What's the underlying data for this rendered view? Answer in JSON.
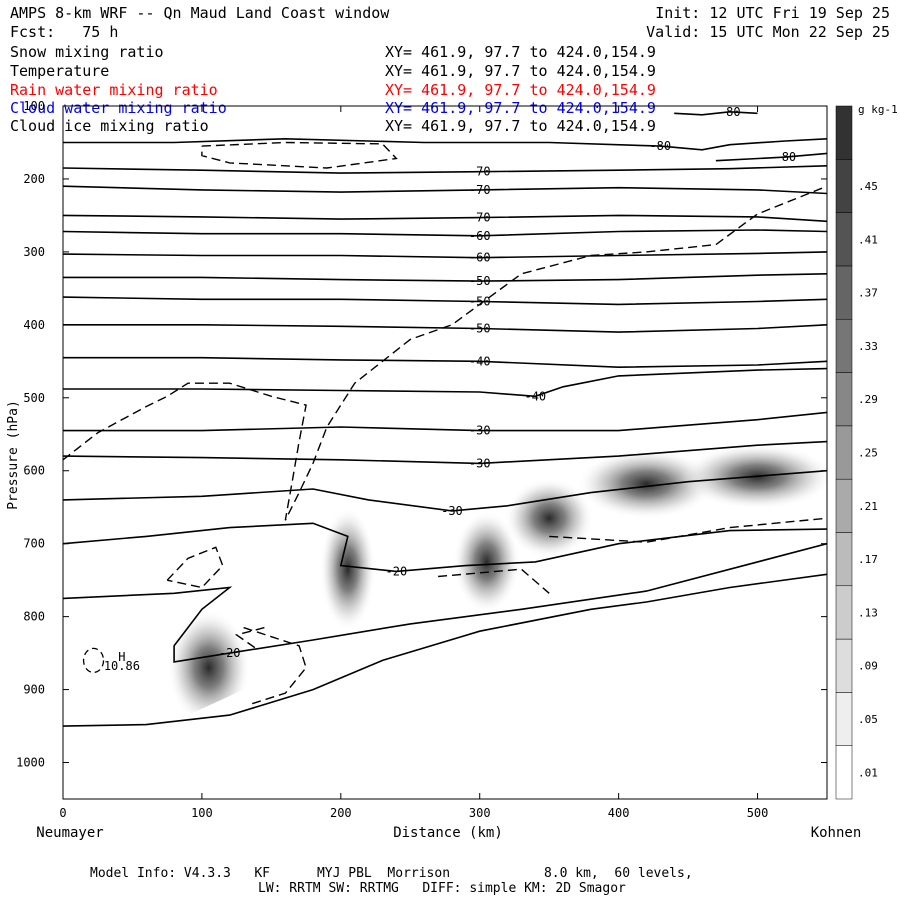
{
  "header": {
    "title": "AMPS 8-km WRF -- Qn Maud Land Coast window",
    "forecast": "Fcst:   75 h",
    "init": "Init: 12 UTC Fri 19 Sep 25",
    "valid": "Valid: 15 UTC Mon 22 Sep 25"
  },
  "legend": [
    {
      "name": "Snow mixing ratio",
      "xy": "XY= 461.9, 97.7 to 424.0,154.9",
      "color": "#000000"
    },
    {
      "name": "Temperature",
      "xy": "XY= 461.9, 97.7 to 424.0,154.9",
      "color": "#000000"
    },
    {
      "name": "Rain water mixing ratio",
      "xy": "XY= 461.9, 97.7 to 424.0,154.9",
      "color": "#ff0000"
    },
    {
      "name": "Cloud water mixing ratio",
      "xy": "XY= 461.9, 97.7 to 424.0,154.9",
      "color": "#0000ff"
    },
    {
      "name": "Cloud ice mixing ratio",
      "xy": "XY= 461.9, 97.7 to 424.0,154.9",
      "color": "#000000"
    }
  ],
  "endpoints": {
    "left": "Neumayer",
    "right": "Kohnen"
  },
  "footer": {
    "line1": "Model Info: V4.3.3   KF      MYJ PBL  Morrison            8.0 km,  60 levels,",
    "line2": "LW: RRTM SW: RRTMG   DIFF: simple KM: 2D Smagor"
  },
  "chart_data": {
    "type": "cross-section",
    "xlabel": "Distance (km)",
    "ylabel": "Pressure (hPa)",
    "xlim": [
      0,
      550
    ],
    "ylim": [
      1050,
      100
    ],
    "xticks": [
      0,
      100,
      200,
      300,
      400,
      500
    ],
    "yticks": [
      100,
      200,
      300,
      400,
      500,
      600,
      700,
      800,
      900,
      1000
    ],
    "colorbar": {
      "unit": "g kg-1",
      "labels": [
        ".01",
        ".05",
        ".09",
        ".13",
        ".17",
        ".21",
        ".25",
        ".29",
        ".33",
        ".37",
        ".41",
        ".45"
      ]
    },
    "temperature_contours": [
      {
        "label": "-80",
        "pts": [
          [
            440,
            110
          ],
          [
            460,
            112
          ],
          [
            480,
            108
          ],
          [
            500,
            110
          ]
        ]
      },
      {
        "label": "-80",
        "pts": [
          [
            0,
            150
          ],
          [
            80,
            150
          ],
          [
            160,
            145
          ],
          [
            260,
            150
          ],
          [
            350,
            150
          ],
          [
            430,
            155
          ],
          [
            460,
            160
          ],
          [
            480,
            153
          ],
          [
            520,
            148
          ],
          [
            550,
            145
          ]
        ]
      },
      {
        "label": "-80",
        "pts": [
          [
            470,
            175
          ],
          [
            520,
            170
          ],
          [
            550,
            165
          ]
        ]
      },
      {
        "label": "-70",
        "pts": [
          [
            0,
            185
          ],
          [
            100,
            188
          ],
          [
            200,
            192
          ],
          [
            300,
            190
          ],
          [
            400,
            188
          ],
          [
            480,
            186
          ],
          [
            550,
            182
          ]
        ]
      },
      {
        "label": "-70",
        "pts": [
          [
            0,
            210
          ],
          [
            100,
            215
          ],
          [
            200,
            218
          ],
          [
            300,
            215
          ],
          [
            400,
            212
          ],
          [
            500,
            215
          ],
          [
            550,
            220
          ]
        ]
      },
      {
        "label": "-70",
        "pts": [
          [
            0,
            250
          ],
          [
            100,
            252
          ],
          [
            200,
            255
          ],
          [
            300,
            253
          ],
          [
            400,
            250
          ],
          [
            500,
            252
          ],
          [
            550,
            258
          ]
        ]
      },
      {
        "label": "-60",
        "pts": [
          [
            0,
            272
          ],
          [
            100,
            275
          ],
          [
            200,
            275
          ],
          [
            300,
            278
          ],
          [
            400,
            272
          ],
          [
            500,
            270
          ],
          [
            550,
            272
          ]
        ]
      },
      {
        "label": "-60",
        "pts": [
          [
            0,
            303
          ],
          [
            100,
            305
          ],
          [
            200,
            305
          ],
          [
            300,
            308
          ],
          [
            400,
            305
          ],
          [
            500,
            302
          ],
          [
            550,
            300
          ]
        ]
      },
      {
        "label": "-50",
        "pts": [
          [
            0,
            335
          ],
          [
            100,
            335
          ],
          [
            200,
            338
          ],
          [
            300,
            340
          ],
          [
            400,
            338
          ],
          [
            500,
            332
          ],
          [
            550,
            330
          ]
        ]
      },
      {
        "label": "-50",
        "pts": [
          [
            0,
            362
          ],
          [
            100,
            365
          ],
          [
            200,
            365
          ],
          [
            300,
            368
          ],
          [
            400,
            372
          ],
          [
            500,
            368
          ],
          [
            550,
            365
          ]
        ]
      },
      {
        "label": "-50",
        "pts": [
          [
            0,
            400
          ],
          [
            100,
            400
          ],
          [
            200,
            402
          ],
          [
            300,
            405
          ],
          [
            400,
            410
          ],
          [
            500,
            405
          ],
          [
            550,
            400
          ]
        ]
      },
      {
        "label": "-40",
        "pts": [
          [
            0,
            445
          ],
          [
            100,
            445
          ],
          [
            200,
            448
          ],
          [
            300,
            450
          ],
          [
            400,
            458
          ],
          [
            500,
            455
          ],
          [
            550,
            450
          ]
        ]
      },
      {
        "label": "-40",
        "pts": [
          [
            0,
            488
          ],
          [
            100,
            488
          ],
          [
            200,
            490
          ],
          [
            300,
            492
          ],
          [
            340,
            498
          ],
          [
            360,
            485
          ],
          [
            400,
            470
          ],
          [
            500,
            462
          ],
          [
            550,
            460
          ]
        ]
      },
      {
        "label": "-30",
        "pts": [
          [
            0,
            545
          ],
          [
            100,
            545
          ],
          [
            200,
            540
          ],
          [
            300,
            545
          ],
          [
            400,
            545
          ],
          [
            500,
            530
          ],
          [
            550,
            520
          ]
        ]
      },
      {
        "label": "-30",
        "pts": [
          [
            0,
            580
          ],
          [
            100,
            582
          ],
          [
            200,
            585
          ],
          [
            300,
            590
          ],
          [
            400,
            580
          ],
          [
            500,
            565
          ],
          [
            550,
            560
          ]
        ]
      },
      {
        "label": "-30",
        "pts": [
          [
            0,
            640
          ],
          [
            100,
            635
          ],
          [
            180,
            625
          ],
          [
            220,
            640
          ],
          [
            280,
            655
          ],
          [
            320,
            648
          ],
          [
            380,
            630
          ],
          [
            450,
            615
          ],
          [
            550,
            600
          ]
        ]
      },
      {
        "label": "-20",
        "pts": [
          [
            0,
            700
          ],
          [
            60,
            690
          ],
          [
            120,
            678
          ],
          [
            180,
            672
          ],
          [
            205,
            690
          ],
          [
            200,
            730
          ],
          [
            240,
            738
          ],
          [
            290,
            730
          ],
          [
            340,
            725
          ],
          [
            400,
            700
          ],
          [
            480,
            682
          ],
          [
            550,
            680
          ]
        ]
      },
      {
        "label": "-20",
        "pts": [
          [
            0,
            775
          ],
          [
            80,
            768
          ],
          [
            120,
            760
          ],
          [
            100,
            790
          ],
          [
            80,
            840
          ],
          [
            80,
            862
          ],
          [
            120,
            850
          ],
          [
            180,
            832
          ],
          [
            250,
            810
          ],
          [
            330,
            790
          ],
          [
            420,
            765
          ],
          [
            550,
            700
          ]
        ]
      },
      {
        "label": "",
        "pts": [
          [
            0,
            950
          ],
          [
            60,
            948
          ],
          [
            120,
            935
          ],
          [
            180,
            900
          ],
          [
            230,
            860
          ],
          [
            300,
            820
          ],
          [
            380,
            790
          ],
          [
            420,
            780
          ],
          [
            480,
            760
          ],
          [
            550,
            742
          ]
        ]
      }
    ],
    "surface": [
      [
        0,
        955
      ],
      [
        50,
        955
      ],
      [
        90,
        935
      ],
      [
        130,
        900
      ],
      [
        170,
        862
      ],
      [
        220,
        845
      ],
      [
        270,
        830
      ],
      [
        330,
        810
      ],
      [
        380,
        795
      ],
      [
        420,
        778
      ],
      [
        480,
        752
      ],
      [
        550,
        735
      ]
    ],
    "snow_plumes": [
      {
        "x": 105,
        "p": 870,
        "rx": 30,
        "rp": 80
      },
      {
        "x": 205,
        "p": 735,
        "rx": 20,
        "rp": 85
      },
      {
        "x": 305,
        "p": 725,
        "rx": 24,
        "rp": 70
      },
      {
        "x": 350,
        "p": 665,
        "rx": 32,
        "rp": 55
      },
      {
        "x": 420,
        "p": 618,
        "rx": 50,
        "rp": 48
      },
      {
        "x": 500,
        "p": 608,
        "rx": 55,
        "rp": 45
      }
    ],
    "ice_contours": [
      {
        "pts": [
          [
            100,
            155
          ],
          [
            160,
            150
          ],
          [
            230,
            152
          ],
          [
            240,
            172
          ],
          [
            190,
            185
          ],
          [
            120,
            178
          ],
          [
            100,
            168
          ],
          [
            100,
            155
          ]
        ]
      },
      {
        "pts": [
          [
            0,
            585
          ],
          [
            25,
            548
          ],
          [
            60,
            512
          ],
          [
            75,
            498
          ],
          [
            90,
            480
          ],
          [
            120,
            480
          ],
          [
            150,
            498
          ],
          [
            175,
            510
          ],
          [
            170,
            560
          ],
          [
            165,
            615
          ],
          [
            160,
            668
          ],
          [
            170,
            630
          ],
          [
            180,
            590
          ],
          [
            190,
            540
          ],
          [
            210,
            480
          ],
          [
            250,
            420
          ],
          [
            280,
            400
          ],
          [
            330,
            330
          ],
          [
            380,
            305
          ],
          [
            420,
            300
          ],
          [
            470,
            290
          ],
          [
            500,
            248
          ],
          [
            550,
            210
          ]
        ]
      },
      {
        "pts": [
          [
            75,
            750
          ],
          [
            90,
            720
          ],
          [
            110,
            705
          ],
          [
            115,
            730
          ],
          [
            100,
            760
          ],
          [
            75,
            750
          ]
        ]
      },
      {
        "pts": [
          [
            130,
            815
          ],
          [
            170,
            840
          ],
          [
            175,
            870
          ],
          [
            160,
            905
          ],
          [
            135,
            920
          ]
        ]
      },
      {
        "pts": [
          [
            350,
            690
          ],
          [
            420,
            698
          ],
          [
            480,
            678
          ],
          [
            550,
            665
          ]
        ]
      },
      {
        "pts": [
          [
            145,
            815
          ],
          [
            125,
            825
          ],
          [
            140,
            845
          ]
        ]
      },
      {
        "pts": [
          [
            270,
            745
          ],
          [
            330,
            735
          ],
          [
            350,
            768
          ]
        ]
      }
    ],
    "annotations": [
      {
        "text": "H",
        "x": 28,
        "p": 855
      },
      {
        "text": "10.86",
        "x": 28,
        "p": 868
      }
    ]
  }
}
